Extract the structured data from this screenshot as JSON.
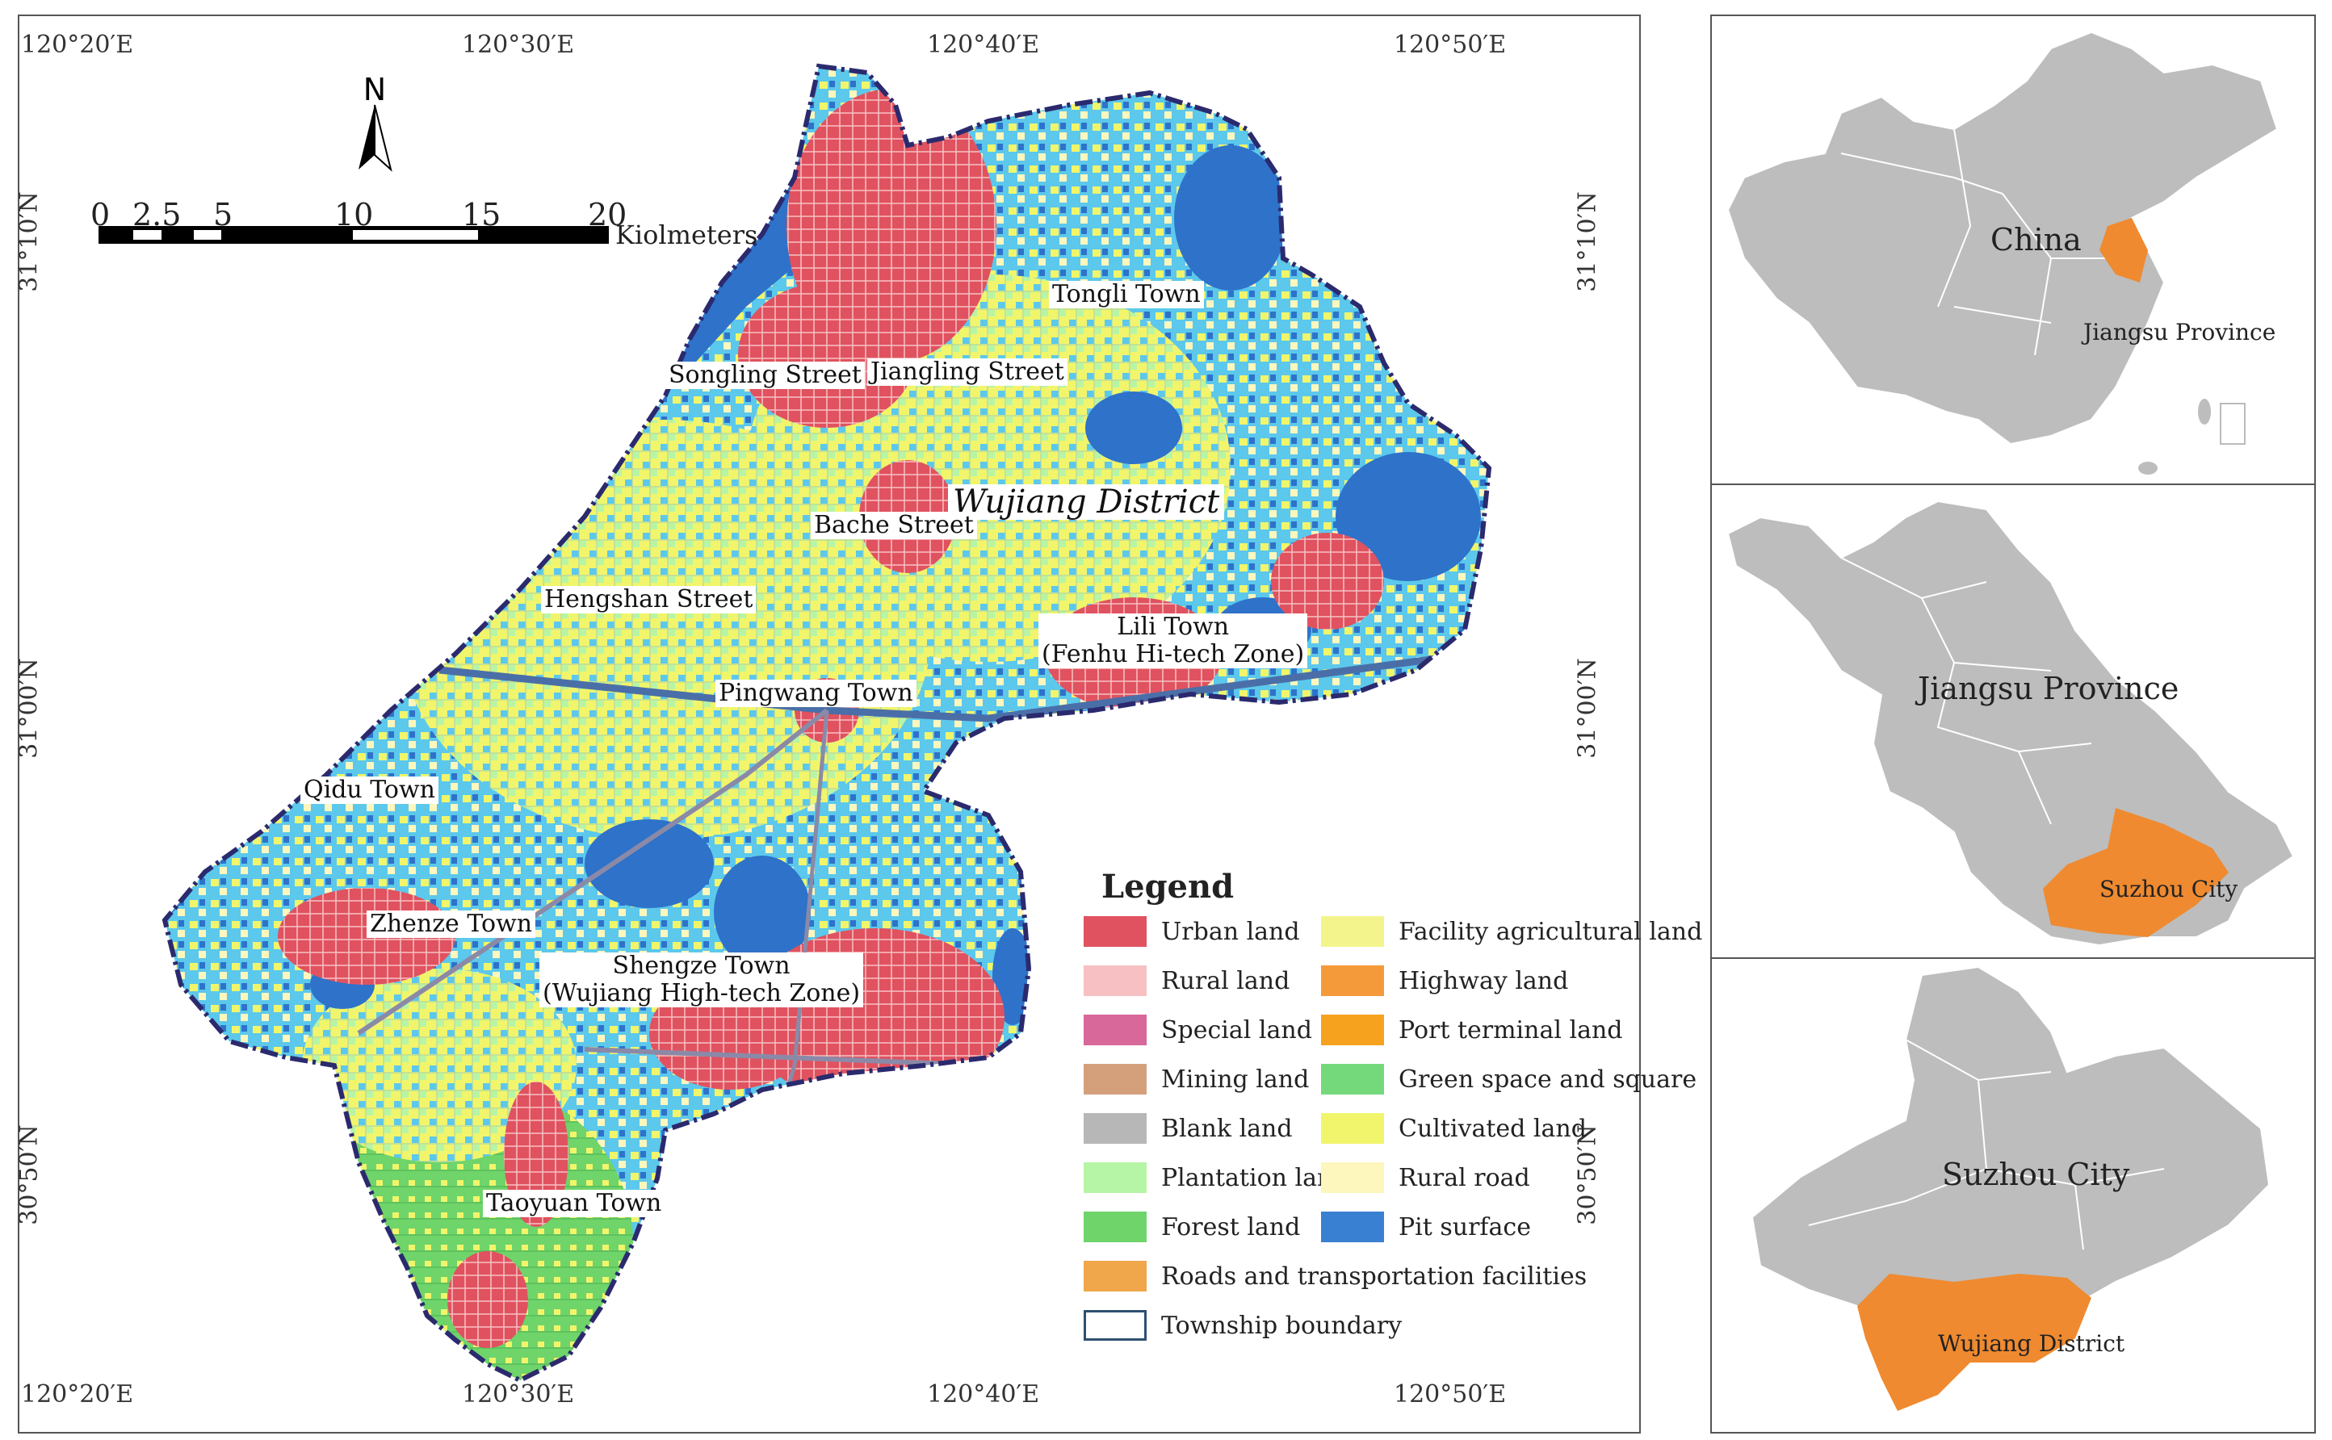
{
  "coords": {
    "top": [
      "120°20′E",
      "120°30′E",
      "120°40′E",
      "120°50′E"
    ],
    "bottom": [
      "120°20′E",
      "120°30′E",
      "120°40′E",
      "120°50′E"
    ],
    "left": [
      "31°10′N",
      "31°00′N",
      "30°50′N"
    ],
    "right": [
      "31°10′N",
      "31°00′N",
      "30°50′N"
    ]
  },
  "north_arrow": "N",
  "scale_bar": {
    "ticks": [
      "0",
      "2.5",
      "5",
      "10",
      "15",
      "20"
    ],
    "unit": "Kiolmeters"
  },
  "places": {
    "district": "Wujiang District",
    "tongli": "Tongli Town",
    "songling": "Songling Street",
    "jiangling": "Jiangling Street",
    "bache": "Bache Street",
    "hengshan": "Hengshan Street",
    "lili_1": "Lili Town",
    "lili_2": "(Fenhu Hi-tech Zone)",
    "pingwang": "Pingwang Town",
    "qidu": "Qidu Town",
    "zhenze": "Zhenze Town",
    "shengze_1": "Shengze Town",
    "shengze_2": "(Wujiang High-tech Zone)",
    "taoyuan": "Taoyuan Town"
  },
  "legend": {
    "title": "Legend",
    "items": [
      {
        "label": "Urban land",
        "color": "#e0525f"
      },
      {
        "label": "Rural land",
        "color": "#f7c1c4"
      },
      {
        "label": "Special land",
        "color": "#d8679a"
      },
      {
        "label": "Mining land",
        "color": "#d4a07c"
      },
      {
        "label": "Blank land",
        "color": "#b7b7b7"
      },
      {
        "label": "Plantation land",
        "color": "#b7f5a6"
      },
      {
        "label": "Forest land",
        "color": "#6fd46a"
      },
      {
        "label": "Roads and transportation facilities",
        "color": "#f0a64a"
      },
      {
        "label": "Township boundary",
        "color": "#ffffff"
      },
      {
        "label": "Facility agricultural land",
        "color": "#f3f58c"
      },
      {
        "label": "Highway land",
        "color": "#f59a3a"
      },
      {
        "label": "Port terminal land",
        "color": "#f7a21e"
      },
      {
        "label": "Green space and square",
        "color": "#74d97b"
      },
      {
        "label": "Cultivated land",
        "color": "#f1f56b"
      },
      {
        "label": "Rural road",
        "color": "#fdf6bd"
      },
      {
        "label": "Pit surface",
        "color": "#3a80d2"
      }
    ]
  },
  "insets": {
    "china": {
      "country": "China",
      "province": "Jiangsu Province"
    },
    "jiangsu": {
      "province": "Jiangsu Province",
      "city": "Suzhou City"
    },
    "suzhou": {
      "city": "Suzhou City",
      "district": "Wujiang District"
    }
  },
  "colors": {
    "water": "#2e72c9",
    "light_water": "#5cc8ec",
    "urban": "#e0525f",
    "cultivated": "#f1f56b",
    "forest": "#6fd46a",
    "inset_gray": "#bdbdbd",
    "inset_highlight": "#ef8a30",
    "district_boundary": "#2b2a6e"
  }
}
